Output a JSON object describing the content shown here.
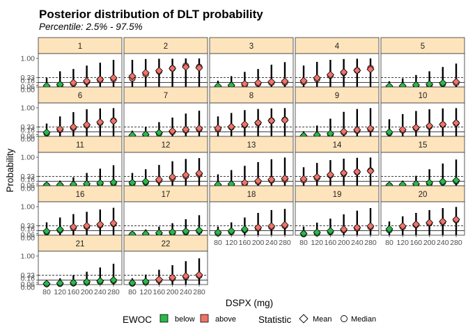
{
  "chart_data": {
    "type": "faceted-interval",
    "title": "Posterior distribution of DLT probability",
    "subtitle": "Percentile: 2.5% - 97.5%",
    "xlabel": "DSPX (mg)",
    "ylabel": "Probability",
    "x_ticks": [
      "80",
      "120",
      "160",
      "200",
      "240",
      "280"
    ],
    "y_ticks": [
      0.0,
      0.06,
      0.16,
      0.33,
      1.0
    ],
    "y_tick_labels": [
      "0.00",
      "0.06",
      "0.16",
      "0.33",
      "1.00"
    ],
    "ylim": [
      0,
      1.17
    ],
    "reference_lines": [
      {
        "y": 0.16,
        "style": "solid"
      },
      {
        "y": 0.33,
        "style": "dashed"
      }
    ],
    "colors": {
      "below": "#2bb84a",
      "above": "#f0736a",
      "strip": "#fde4bc"
    },
    "legend": {
      "position": "bottom",
      "ewoc_title": "EWOC",
      "ewoc_items": [
        {
          "label": "below",
          "color": "#2bb84a"
        },
        {
          "label": "above",
          "color": "#f0736a"
        }
      ],
      "stat_title": "Statistic",
      "stat_items": [
        {
          "label": "Mean",
          "shape": "diamond"
        },
        {
          "label": "Median",
          "shape": "circle"
        }
      ]
    },
    "facets": [
      {
        "label": "1",
        "lo": [
          0.0,
          0.0,
          0.0,
          0.0,
          0.0,
          0.0
        ],
        "hi": [
          0.32,
          0.55,
          0.63,
          0.75,
          0.85,
          0.95
        ],
        "mean": [
          0.04,
          0.09,
          0.15,
          0.21,
          0.27,
          0.32
        ],
        "median": [
          0.02,
          0.05,
          0.12,
          0.18,
          0.24,
          0.28
        ],
        "ewoc": [
          "below",
          "below",
          "above",
          "above",
          "above",
          "above"
        ]
      },
      {
        "label": "2",
        "lo": [
          0.0,
          0.0,
          0.0,
          0.0,
          0.0,
          0.0
        ],
        "hi": [
          0.95,
          0.98,
          0.99,
          0.99,
          1.0,
          1.0
        ],
        "mean": [
          0.38,
          0.5,
          0.57,
          0.65,
          0.7,
          0.67
        ],
        "median": [
          0.3,
          0.45,
          0.55,
          0.65,
          0.74,
          0.7
        ],
        "ewoc": [
          "above",
          "above",
          "above",
          "above",
          "above",
          "above"
        ]
      },
      {
        "label": "3",
        "lo": [
          0.0,
          0.0,
          0.0,
          0.0,
          0.0,
          0.0
        ],
        "hi": [
          0.22,
          0.38,
          0.53,
          0.63,
          0.78,
          0.87
        ],
        "mean": [
          0.03,
          0.06,
          0.11,
          0.15,
          0.18,
          0.2
        ],
        "median": [
          0.01,
          0.04,
          0.08,
          0.12,
          0.15,
          0.16
        ],
        "ewoc": [
          "below",
          "below",
          "above",
          "above",
          "above",
          "above"
        ]
      },
      {
        "label": "4",
        "lo": [
          0.0,
          0.0,
          0.0,
          0.0,
          0.0,
          0.0
        ],
        "hi": [
          0.75,
          0.88,
          0.95,
          0.98,
          0.99,
          1.0
        ],
        "mean": [
          0.22,
          0.32,
          0.43,
          0.52,
          0.58,
          0.62
        ],
        "median": [
          0.18,
          0.28,
          0.4,
          0.5,
          0.58,
          0.66
        ],
        "ewoc": [
          "above",
          "above",
          "above",
          "above",
          "above",
          "above"
        ]
      },
      {
        "label": "5",
        "lo": [
          0.0,
          0.0,
          0.0,
          0.0,
          0.0,
          0.0
        ],
        "hi": [
          0.2,
          0.3,
          0.42,
          0.55,
          0.7,
          0.82
        ],
        "mean": [
          0.03,
          0.04,
          0.07,
          0.1,
          0.14,
          0.18
        ],
        "median": [
          0.01,
          0.02,
          0.05,
          0.07,
          0.11,
          0.14
        ],
        "ewoc": [
          "below",
          "below",
          "below",
          "below",
          "below",
          "above"
        ]
      },
      {
        "label": "6",
        "lo": [
          0.0,
          0.0,
          0.0,
          0.0,
          0.0,
          0.0
        ],
        "hi": [
          0.45,
          0.7,
          0.85,
          0.95,
          0.98,
          0.99
        ],
        "mean": [
          0.14,
          0.26,
          0.33,
          0.41,
          0.5,
          0.54
        ],
        "median": [
          0.11,
          0.23,
          0.3,
          0.38,
          0.48,
          0.55
        ],
        "ewoc": [
          "below",
          "above",
          "above",
          "above",
          "above",
          "above"
        ]
      },
      {
        "label": "7",
        "lo": [
          0.0,
          0.0,
          0.0,
          0.0,
          0.0,
          0.0
        ],
        "hi": [
          0.2,
          0.34,
          0.5,
          0.66,
          0.8,
          0.9
        ],
        "mean": [
          0.04,
          0.07,
          0.13,
          0.19,
          0.24,
          0.28
        ],
        "median": [
          0.02,
          0.05,
          0.1,
          0.16,
          0.21,
          0.25
        ],
        "ewoc": [
          "below",
          "below",
          "below",
          "above",
          "above",
          "above"
        ]
      },
      {
        "label": "8",
        "lo": [
          0.0,
          0.0,
          0.0,
          0.0,
          0.0,
          0.0
        ],
        "hi": [
          0.7,
          0.82,
          0.92,
          0.96,
          0.98,
          0.99
        ],
        "mean": [
          0.29,
          0.34,
          0.42,
          0.48,
          0.55,
          0.57
        ],
        "median": [
          0.25,
          0.32,
          0.4,
          0.47,
          0.55,
          0.58
        ],
        "ewoc": [
          "above",
          "above",
          "above",
          "above",
          "above",
          "above"
        ]
      },
      {
        "label": "9",
        "lo": [
          0.0,
          0.0,
          0.0,
          0.0,
          0.0,
          0.0
        ],
        "hi": [
          0.18,
          0.38,
          0.62,
          0.86,
          0.96,
          0.99
        ],
        "mean": [
          0.02,
          0.05,
          0.1,
          0.17,
          0.23,
          0.28
        ],
        "median": [
          0.01,
          0.03,
          0.07,
          0.14,
          0.2,
          0.25
        ],
        "ewoc": [
          "below",
          "below",
          "below",
          "above",
          "above",
          "above"
        ]
      },
      {
        "label": "10",
        "lo": [
          0.0,
          0.0,
          0.0,
          0.0,
          0.0,
          0.0
        ],
        "hi": [
          0.6,
          0.78,
          0.89,
          0.95,
          0.98,
          0.99
        ],
        "mean": [
          0.15,
          0.24,
          0.31,
          0.37,
          0.42,
          0.47
        ],
        "median": [
          0.12,
          0.21,
          0.29,
          0.35,
          0.41,
          0.46
        ],
        "ewoc": [
          "below",
          "above",
          "above",
          "above",
          "above",
          "above"
        ]
      },
      {
        "label": "11",
        "lo": [
          0.0,
          0.0,
          0.0,
          0.0,
          0.0,
          0.0
        ],
        "hi": [
          0.1,
          0.18,
          0.3,
          0.45,
          0.6,
          0.72
        ],
        "mean": [
          0.02,
          0.03,
          0.05,
          0.07,
          0.1,
          0.12
        ],
        "median": [
          0.01,
          0.02,
          0.03,
          0.05,
          0.07,
          0.09
        ],
        "ewoc": [
          "below",
          "below",
          "below",
          "below",
          "below",
          "below"
        ]
      },
      {
        "label": "12",
        "lo": [
          0.0,
          0.0,
          0.0,
          0.0,
          0.0,
          0.0
        ],
        "hi": [
          0.45,
          0.58,
          0.73,
          0.86,
          0.94,
          0.97
        ],
        "mean": [
          0.11,
          0.15,
          0.22,
          0.31,
          0.38,
          0.44
        ],
        "median": [
          0.08,
          0.12,
          0.19,
          0.27,
          0.34,
          0.4
        ],
        "ewoc": [
          "below",
          "below",
          "above",
          "above",
          "above",
          "above"
        ]
      },
      {
        "label": "13",
        "lo": [
          0.0,
          0.0,
          0.0,
          0.0,
          0.0,
          0.0
        ],
        "hi": [
          0.4,
          0.55,
          0.7,
          0.83,
          0.93,
          0.99
        ],
        "mean": [
          0.04,
          0.06,
          0.11,
          0.17,
          0.22,
          0.26
        ],
        "median": [
          0.02,
          0.04,
          0.08,
          0.14,
          0.19,
          0.22
        ],
        "ewoc": [
          "below",
          "below",
          "above",
          "above",
          "above",
          "above"
        ]
      },
      {
        "label": "14",
        "lo": [
          0.0,
          0.0,
          0.0,
          0.0,
          0.0,
          0.0
        ],
        "hi": [
          0.65,
          0.8,
          0.9,
          0.95,
          0.98,
          0.99
        ],
        "mean": [
          0.24,
          0.31,
          0.39,
          0.45,
          0.49,
          0.52
        ],
        "median": [
          0.2,
          0.28,
          0.37,
          0.44,
          0.48,
          0.53
        ],
        "ewoc": [
          "above",
          "above",
          "above",
          "above",
          "above",
          "above"
        ]
      },
      {
        "label": "15",
        "lo": [
          0.0,
          0.0,
          0.0,
          0.0,
          0.0,
          0.0
        ],
        "hi": [
          0.1,
          0.18,
          0.35,
          0.58,
          0.78,
          0.92
        ],
        "mean": [
          0.02,
          0.04,
          0.07,
          0.11,
          0.15,
          0.19
        ],
        "median": [
          0.01,
          0.02,
          0.04,
          0.08,
          0.12,
          0.16
        ],
        "ewoc": [
          "below",
          "below",
          "below",
          "below",
          "below",
          "below"
        ]
      },
      {
        "label": "16",
        "lo": [
          0.0,
          0.0,
          0.0,
          0.0,
          0.0,
          0.0
        ],
        "hi": [
          0.45,
          0.62,
          0.74,
          0.82,
          0.9,
          0.96
        ],
        "mean": [
          0.14,
          0.2,
          0.29,
          0.33,
          0.38,
          0.42
        ],
        "median": [
          0.11,
          0.17,
          0.26,
          0.3,
          0.35,
          0.4
        ],
        "ewoc": [
          "below",
          "below",
          "above",
          "above",
          "above",
          "above"
        ]
      },
      {
        "label": "17",
        "lo": [
          0.0,
          0.0,
          0.0,
          0.0,
          0.0,
          0.0
        ],
        "hi": [
          0.1,
          0.2,
          0.3,
          0.42,
          0.56,
          0.7
        ],
        "mean": [
          0.03,
          0.05,
          0.08,
          0.11,
          0.14,
          0.17
        ],
        "median": [
          0.02,
          0.03,
          0.05,
          0.08,
          0.11,
          0.14
        ],
        "ewoc": [
          "below",
          "below",
          "below",
          "below",
          "below",
          "below"
        ]
      },
      {
        "label": "18",
        "lo": [
          0.0,
          0.0,
          0.0,
          0.0,
          0.0,
          0.0
        ],
        "hi": [
          0.3,
          0.45,
          0.62,
          0.78,
          0.88,
          0.92
        ],
        "mean": [
          0.1,
          0.15,
          0.21,
          0.27,
          0.32,
          0.36
        ],
        "median": [
          0.07,
          0.12,
          0.18,
          0.24,
          0.29,
          0.33
        ],
        "ewoc": [
          "below",
          "below",
          "below",
          "above",
          "above",
          "above"
        ]
      },
      {
        "label": "19",
        "lo": [
          0.0,
          0.0,
          0.0,
          0.0,
          0.0,
          0.0
        ],
        "hi": [
          0.3,
          0.44,
          0.58,
          0.73,
          0.86,
          0.95
        ],
        "mean": [
          0.06,
          0.1,
          0.15,
          0.21,
          0.27,
          0.32
        ],
        "median": [
          0.04,
          0.07,
          0.12,
          0.18,
          0.24,
          0.29
        ],
        "ewoc": [
          "below",
          "below",
          "below",
          "above",
          "above",
          "above"
        ]
      },
      {
        "label": "20",
        "lo": [
          0.0,
          0.0,
          0.0,
          0.0,
          0.0,
          0.0
        ],
        "hi": [
          0.48,
          0.66,
          0.78,
          0.88,
          0.95,
          0.99
        ],
        "mean": [
          0.22,
          0.32,
          0.38,
          0.44,
          0.48,
          0.55
        ],
        "median": [
          0.18,
          0.29,
          0.36,
          0.42,
          0.46,
          0.53
        ],
        "ewoc": [
          "below",
          "above",
          "above",
          "above",
          "above",
          "above"
        ]
      },
      {
        "label": "21",
        "lo": [
          0.0,
          0.0,
          0.0,
          0.0,
          0.0,
          0.0
        ],
        "hi": [
          0.12,
          0.22,
          0.33,
          0.45,
          0.6,
          0.73
        ],
        "mean": [
          0.03,
          0.05,
          0.07,
          0.1,
          0.13,
          0.16
        ],
        "median": [
          0.02,
          0.03,
          0.05,
          0.07,
          0.1,
          0.13
        ],
        "ewoc": [
          "below",
          "below",
          "below",
          "below",
          "below",
          "below"
        ]
      },
      {
        "label": "22",
        "lo": [
          0.0,
          0.0,
          0.0,
          0.0,
          0.0,
          0.0
        ],
        "hi": [
          0.22,
          0.35,
          0.52,
          0.68,
          0.82,
          0.92
        ],
        "mean": [
          0.06,
          0.11,
          0.18,
          0.25,
          0.3,
          0.34
        ],
        "median": [
          0.04,
          0.08,
          0.15,
          0.22,
          0.27,
          0.31
        ],
        "ewoc": [
          "below",
          "below",
          "above",
          "above",
          "above",
          "above"
        ]
      }
    ]
  }
}
